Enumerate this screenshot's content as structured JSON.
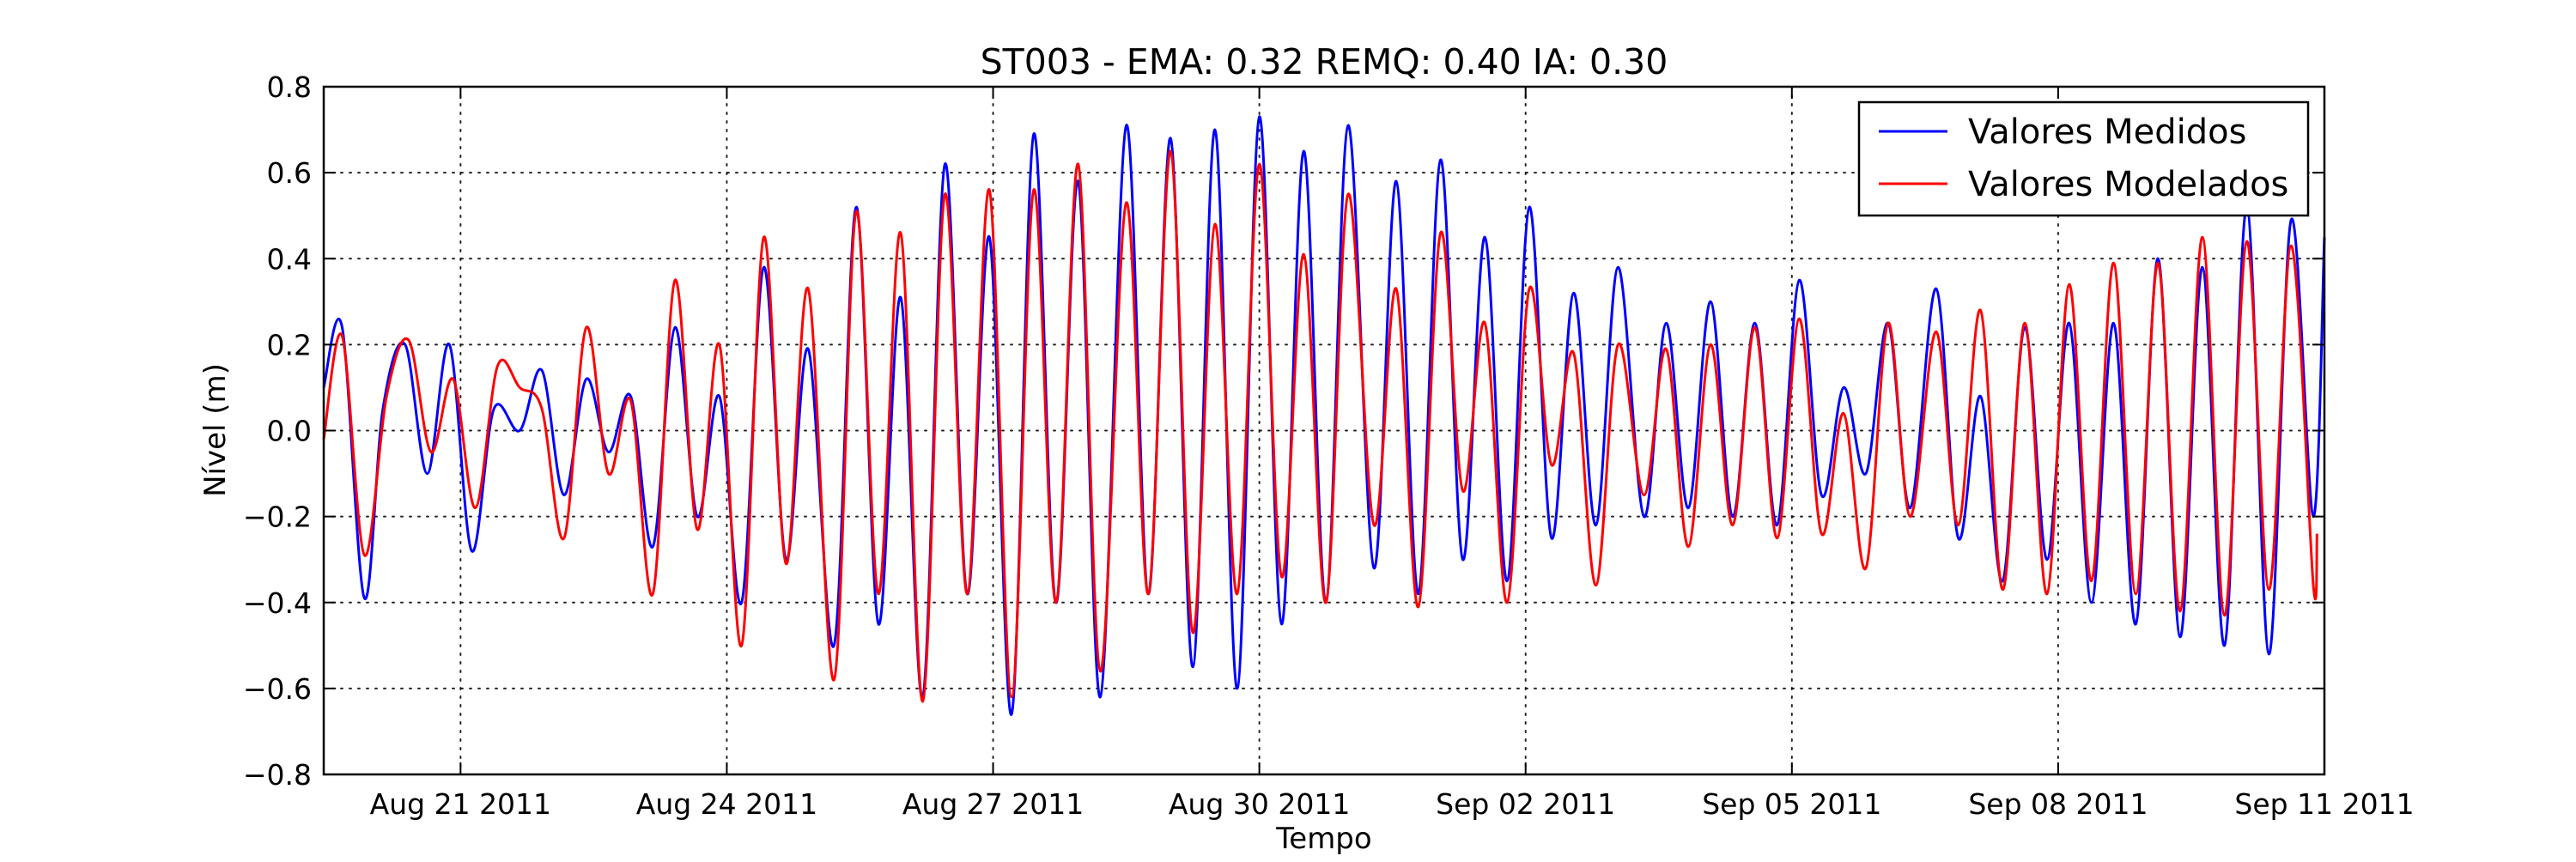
{
  "chart_data": {
    "type": "line",
    "title": "ST003 - EMA: 0.32  REMQ: 0.40  IA: 0.30",
    "xlabel": "Tempo",
    "ylabel": "Nível (m)",
    "x_type": "date",
    "xlim": [
      "2011-08-19T11:00",
      "2011-09-11T00:00"
    ],
    "ylim": [
      -0.8,
      0.8
    ],
    "grid": true,
    "legend_position": "top-right",
    "x_ticks": [
      {
        "date": "2011-08-21",
        "label": "Aug 21 2011"
      },
      {
        "date": "2011-08-24",
        "label": "Aug 24 2011"
      },
      {
        "date": "2011-08-27",
        "label": "Aug 27 2011"
      },
      {
        "date": "2011-08-30",
        "label": "Aug 30 2011"
      },
      {
        "date": "2011-09-02",
        "label": "Sep 02 2011"
      },
      {
        "date": "2011-09-05",
        "label": "Sep 05 2011"
      },
      {
        "date": "2011-09-08",
        "label": "Sep 08 2011"
      },
      {
        "date": "2011-09-11",
        "label": "Sep 11 2011"
      }
    ],
    "y_ticks": [
      {
        "value": 0.8,
        "label": "0.8"
      },
      {
        "value": 0.6,
        "label": "0.6"
      },
      {
        "value": 0.4,
        "label": "0.4"
      },
      {
        "value": 0.2,
        "label": "0.2"
      },
      {
        "value": 0.0,
        "label": "0.0"
      },
      {
        "value": -0.2,
        "label": "−0.2"
      },
      {
        "value": -0.4,
        "label": "−0.4"
      },
      {
        "value": -0.6,
        "label": "−0.6"
      },
      {
        "value": -0.8,
        "label": "−0.8"
      }
    ],
    "series": [
      {
        "name": "Valores Medidos",
        "color": "#0000ff",
        "x": [
          "2011-08-19T11:00",
          "2011-08-19T16:00",
          "2011-08-19T22:00",
          "2011-08-20T03:00",
          "2011-08-20T09:00",
          "2011-08-20T15:00",
          "2011-08-20T21:00",
          "2011-08-21T03:00",
          "2011-08-21T09:00",
          "2011-08-21T16:00",
          "2011-08-21T22:00",
          "2011-08-22T04:00",
          "2011-08-22T10:00",
          "2011-08-22T16:00",
          "2011-08-22T22:00",
          "2011-08-23T04:00",
          "2011-08-23T10:00",
          "2011-08-23T16:00",
          "2011-08-23T22:00",
          "2011-08-24T04:00",
          "2011-08-24T10:00",
          "2011-08-24T16:00",
          "2011-08-24T22:00",
          "2011-08-25T05:00",
          "2011-08-25T11:00",
          "2011-08-25T17:00",
          "2011-08-25T23:00",
          "2011-08-26T05:00",
          "2011-08-26T11:00",
          "2011-08-26T17:00",
          "2011-08-26T23:00",
          "2011-08-27T05:00",
          "2011-08-27T11:00",
          "2011-08-27T17:00",
          "2011-08-27T23:00",
          "2011-08-28T05:00",
          "2011-08-28T12:00",
          "2011-08-28T18:00",
          "2011-08-29T00:00",
          "2011-08-29T06:00",
          "2011-08-29T12:00",
          "2011-08-29T18:00",
          "2011-08-30T00:00",
          "2011-08-30T06:00",
          "2011-08-30T12:00",
          "2011-08-30T18:00",
          "2011-08-31T00:00",
          "2011-08-31T07:00",
          "2011-08-31T13:00",
          "2011-08-31T19:00",
          "2011-09-01T01:00",
          "2011-09-01T07:00",
          "2011-09-01T13:00",
          "2011-09-01T19:00",
          "2011-09-02T01:00",
          "2011-09-02T07:00",
          "2011-09-02T13:00",
          "2011-09-02T19:00",
          "2011-09-03T01:00",
          "2011-09-03T08:00",
          "2011-09-03T14:00",
          "2011-09-03T20:00",
          "2011-09-04T02:00",
          "2011-09-04T08:00",
          "2011-09-04T14:00",
          "2011-09-04T20:00",
          "2011-09-05T02:00",
          "2011-09-05T08:00",
          "2011-09-05T14:00",
          "2011-09-05T20:00",
          "2011-09-06T02:00",
          "2011-09-06T08:00",
          "2011-09-06T15:00",
          "2011-09-06T21:00",
          "2011-09-07T03:00",
          "2011-09-07T09:00",
          "2011-09-07T15:00",
          "2011-09-07T21:00",
          "2011-09-08T03:00",
          "2011-09-08T09:00",
          "2011-09-08T15:00",
          "2011-09-08T21:00",
          "2011-09-09T03:00",
          "2011-09-09T09:00",
          "2011-09-09T15:00",
          "2011-09-09T21:00",
          "2011-09-10T03:00",
          "2011-09-10T09:00",
          "2011-09-10T15:00",
          "2011-09-10T21:00",
          "2011-09-11T00:00"
        ],
        "values": [
          0.1,
          0.24,
          -0.39,
          0.05,
          0.2,
          -0.1,
          0.2,
          -0.28,
          0.05,
          0.0,
          0.14,
          -0.15,
          0.12,
          -0.05,
          0.08,
          -0.27,
          0.24,
          -0.2,
          0.08,
          -0.4,
          0.38,
          -0.3,
          0.19,
          -0.5,
          0.52,
          -0.45,
          0.31,
          -0.62,
          0.62,
          -0.38,
          0.45,
          -0.66,
          0.69,
          -0.4,
          0.58,
          -0.62,
          0.71,
          -0.38,
          0.68,
          -0.55,
          0.7,
          -0.6,
          0.73,
          -0.45,
          0.65,
          -0.4,
          0.71,
          -0.32,
          0.58,
          -0.38,
          0.63,
          -0.3,
          0.45,
          -0.35,
          0.52,
          -0.25,
          0.32,
          -0.22,
          0.38,
          -0.2,
          0.25,
          -0.18,
          0.3,
          -0.2,
          0.25,
          -0.22,
          0.35,
          -0.15,
          0.1,
          -0.1,
          0.25,
          -0.18,
          0.33,
          -0.25,
          0.08,
          -0.35,
          0.24,
          -0.3,
          0.25,
          -0.4,
          0.25,
          -0.45,
          0.4,
          -0.48,
          0.38,
          -0.5,
          0.52,
          -0.52,
          0.49,
          -0.2,
          0.45
        ]
      },
      {
        "name": "Valores Modelados",
        "color": "#ff0000",
        "x": [
          "2011-08-19T11:00",
          "2011-08-19T16:00",
          "2011-08-19T22:00",
          "2011-08-20T04:00",
          "2011-08-20T10:00",
          "2011-08-20T16:00",
          "2011-08-20T22:00",
          "2011-08-21T04:00",
          "2011-08-21T10:00",
          "2011-08-21T16:00",
          "2011-08-21T22:00",
          "2011-08-22T04:00",
          "2011-08-22T10:00",
          "2011-08-22T16:00",
          "2011-08-22T22:00",
          "2011-08-23T04:00",
          "2011-08-23T10:00",
          "2011-08-23T16:00",
          "2011-08-23T22:00",
          "2011-08-24T04:00",
          "2011-08-24T10:00",
          "2011-08-24T16:00",
          "2011-08-24T22:00",
          "2011-08-25T05:00",
          "2011-08-25T11:00",
          "2011-08-25T17:00",
          "2011-08-25T23:00",
          "2011-08-26T05:00",
          "2011-08-26T11:00",
          "2011-08-26T17:00",
          "2011-08-26T23:00",
          "2011-08-27T05:00",
          "2011-08-27T11:00",
          "2011-08-27T17:00",
          "2011-08-27T23:00",
          "2011-08-28T05:00",
          "2011-08-28T12:00",
          "2011-08-28T18:00",
          "2011-08-29T00:00",
          "2011-08-29T06:00",
          "2011-08-29T12:00",
          "2011-08-29T18:00",
          "2011-08-30T00:00",
          "2011-08-30T06:00",
          "2011-08-30T12:00",
          "2011-08-30T18:00",
          "2011-08-31T00:00",
          "2011-08-31T07:00",
          "2011-08-31T13:00",
          "2011-08-31T19:00",
          "2011-09-01T01:00",
          "2011-09-01T07:00",
          "2011-09-01T13:00",
          "2011-09-01T19:00",
          "2011-09-02T01:00",
          "2011-09-02T07:00",
          "2011-09-02T13:00",
          "2011-09-02T19:00",
          "2011-09-03T01:00",
          "2011-09-03T08:00",
          "2011-09-03T14:00",
          "2011-09-03T20:00",
          "2011-09-04T02:00",
          "2011-09-04T08:00",
          "2011-09-04T14:00",
          "2011-09-04T20:00",
          "2011-09-05T02:00",
          "2011-09-05T08:00",
          "2011-09-05T14:00",
          "2011-09-05T20:00",
          "2011-09-06T02:00",
          "2011-09-06T08:00",
          "2011-09-06T15:00",
          "2011-09-06T21:00",
          "2011-09-07T03:00",
          "2011-09-07T09:00",
          "2011-09-07T15:00",
          "2011-09-07T21:00",
          "2011-09-08T03:00",
          "2011-09-08T09:00",
          "2011-09-08T15:00",
          "2011-09-08T21:00",
          "2011-09-09T03:00",
          "2011-09-09T09:00",
          "2011-09-09T15:00",
          "2011-09-09T21:00",
          "2011-09-10T03:00",
          "2011-09-10T09:00",
          "2011-09-10T15:00",
          "2011-09-10T21:00",
          "2011-09-10T22:00"
        ],
        "values": [
          -0.02,
          0.22,
          -0.29,
          0.08,
          0.21,
          -0.05,
          0.12,
          -0.18,
          0.15,
          0.1,
          0.05,
          -0.25,
          0.24,
          -0.1,
          0.07,
          -0.38,
          0.35,
          -0.23,
          0.2,
          -0.5,
          0.45,
          -0.31,
          0.33,
          -0.58,
          0.51,
          -0.38,
          0.46,
          -0.63,
          0.55,
          -0.38,
          0.56,
          -0.62,
          0.56,
          -0.4,
          0.62,
          -0.56,
          0.53,
          -0.38,
          0.65,
          -0.47,
          0.48,
          -0.38,
          0.62,
          -0.34,
          0.41,
          -0.4,
          0.55,
          -0.22,
          0.33,
          -0.41,
          0.46,
          -0.14,
          0.25,
          -0.4,
          0.33,
          -0.08,
          0.18,
          -0.36,
          0.2,
          -0.15,
          0.19,
          -0.27,
          0.2,
          -0.22,
          0.24,
          -0.25,
          0.26,
          -0.24,
          0.04,
          -0.32,
          0.25,
          -0.2,
          0.23,
          -0.22,
          0.28,
          -0.37,
          0.25,
          -0.38,
          0.34,
          -0.35,
          0.39,
          -0.38,
          0.39,
          -0.42,
          0.45,
          -0.43,
          0.44,
          -0.37,
          0.43,
          -0.36,
          -0.24
        ]
      }
    ]
  }
}
